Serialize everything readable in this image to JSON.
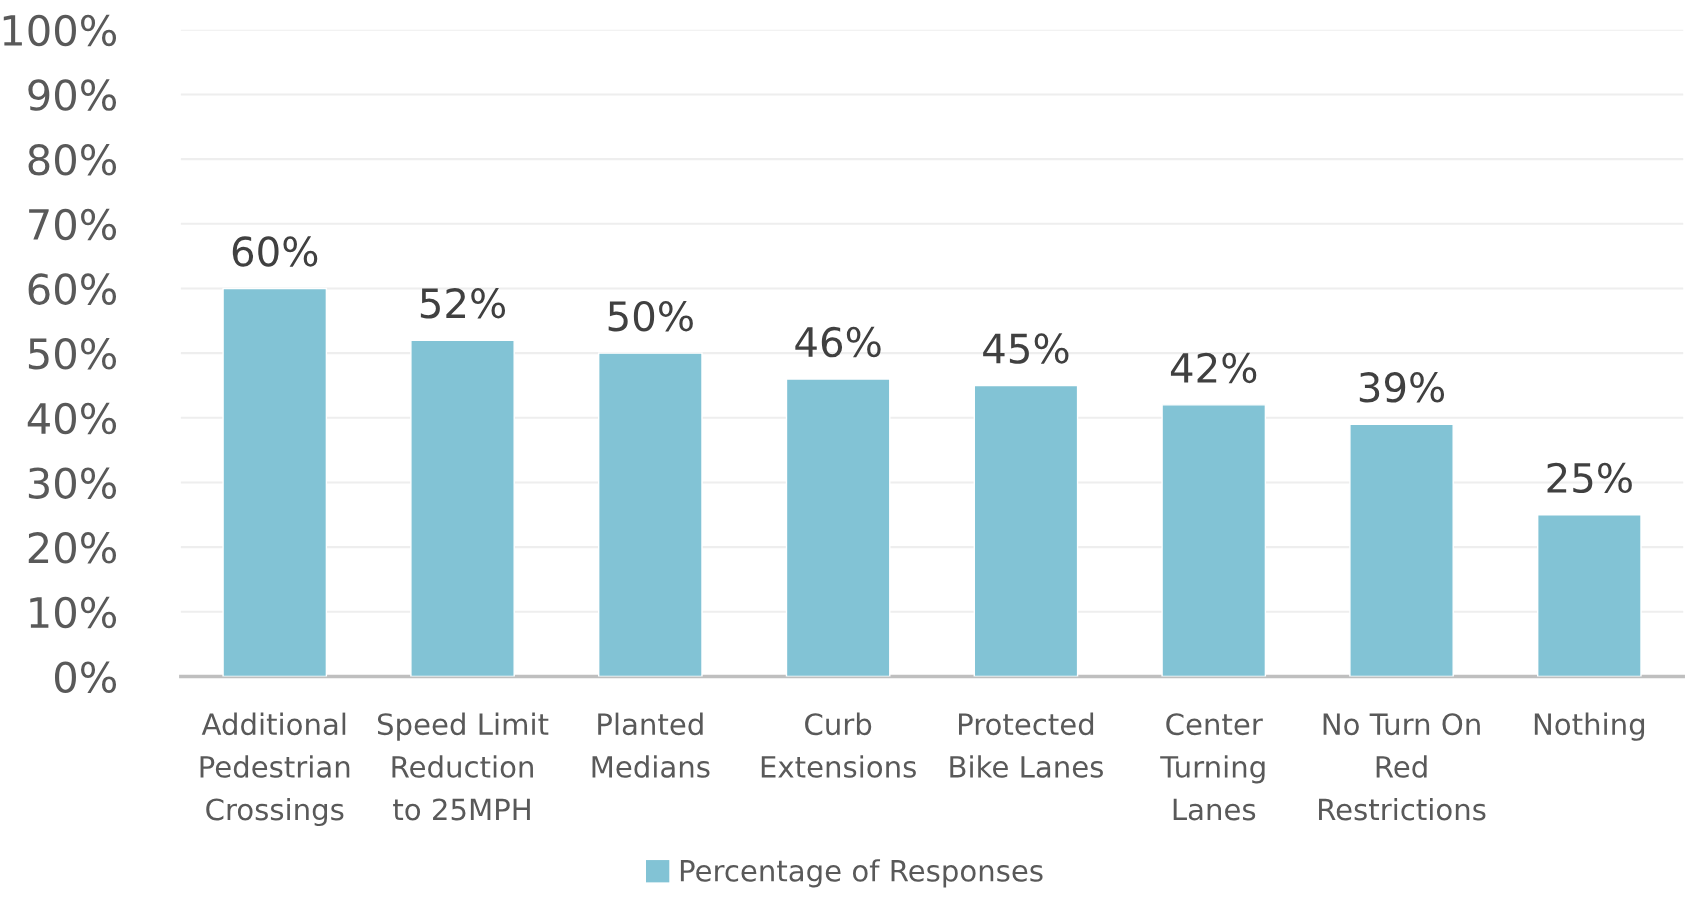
{
  "chart_data": {
    "type": "bar",
    "categories": [
      "Additional\nPedestrian\nCrossings",
      "Speed Limit\nReduction\nto 25MPH",
      "Planted\nMedians",
      "Curb\nExtensions",
      "Protected\nBike Lanes",
      "Center\nTurning\nLanes",
      "No Turn On\nRed\nRestrictions",
      "Nothing"
    ],
    "series": [
      {
        "name": "Percentage of Responses",
        "color": "#82c3d5",
        "values": [
          60,
          52,
          50,
          46,
          45,
          42,
          39,
          25
        ],
        "value_labels": [
          "60%",
          "52%",
          "50%",
          "46%",
          "45%",
          "42%",
          "39%",
          "25%"
        ]
      }
    ],
    "ylim": [
      0,
      100
    ],
    "yticks": [
      {
        "value": 0,
        "label": "0%"
      },
      {
        "value": 10,
        "label": "10%"
      },
      {
        "value": 20,
        "label": "20%"
      },
      {
        "value": 30,
        "label": "30%"
      },
      {
        "value": 40,
        "label": "40%"
      },
      {
        "value": 50,
        "label": "50%"
      },
      {
        "value": 60,
        "label": "60%"
      },
      {
        "value": 70,
        "label": "70%"
      },
      {
        "value": 80,
        "label": "80%"
      },
      {
        "value": 90,
        "label": "90%"
      },
      {
        "value": 100,
        "label": "100%"
      }
    ],
    "grid": "y",
    "legend": "bottom"
  }
}
